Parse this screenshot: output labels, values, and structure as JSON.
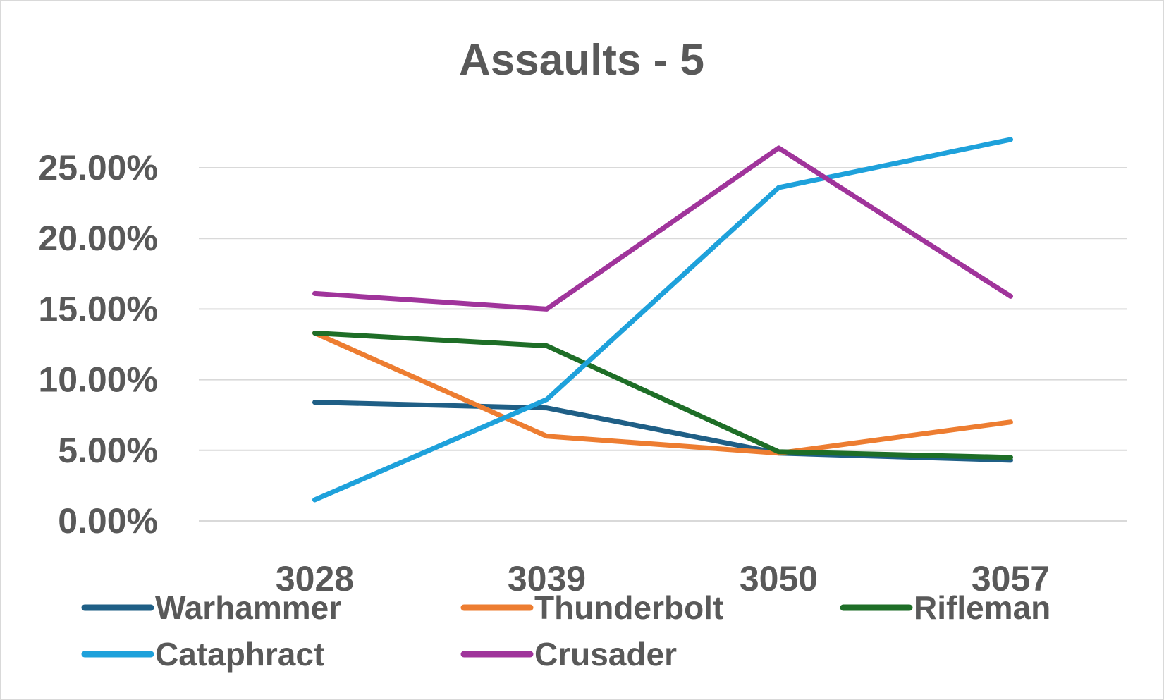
{
  "chart_data": {
    "type": "line",
    "title": "Assaults - 5",
    "xlabel": "",
    "ylabel": "",
    "categories": [
      "3028",
      "3039",
      "3050",
      "3057"
    ],
    "y_ticks": [
      "0.00%",
      "5.00%",
      "10.00%",
      "15.00%",
      "20.00%",
      "25.00%"
    ],
    "ylim": [
      0,
      25
    ],
    "grid": true,
    "legend_position": "bottom",
    "series": [
      {
        "name": "Warhammer",
        "color": "#1f5f86",
        "values": [
          8.4,
          8.0,
          4.8,
          4.3
        ]
      },
      {
        "name": "Thunderbolt",
        "color": "#ed7d31",
        "values": [
          13.3,
          6.0,
          4.8,
          7.0
        ]
      },
      {
        "name": "Rifleman",
        "color": "#1e6e27",
        "values": [
          13.3,
          12.4,
          4.9,
          4.5
        ]
      },
      {
        "name": "Cataphract",
        "color": "#1ea1db",
        "values": [
          1.5,
          8.6,
          23.6,
          27.0
        ]
      },
      {
        "name": "Crusader",
        "color": "#a0349b",
        "values": [
          16.1,
          15.0,
          26.4,
          15.9
        ]
      }
    ]
  }
}
